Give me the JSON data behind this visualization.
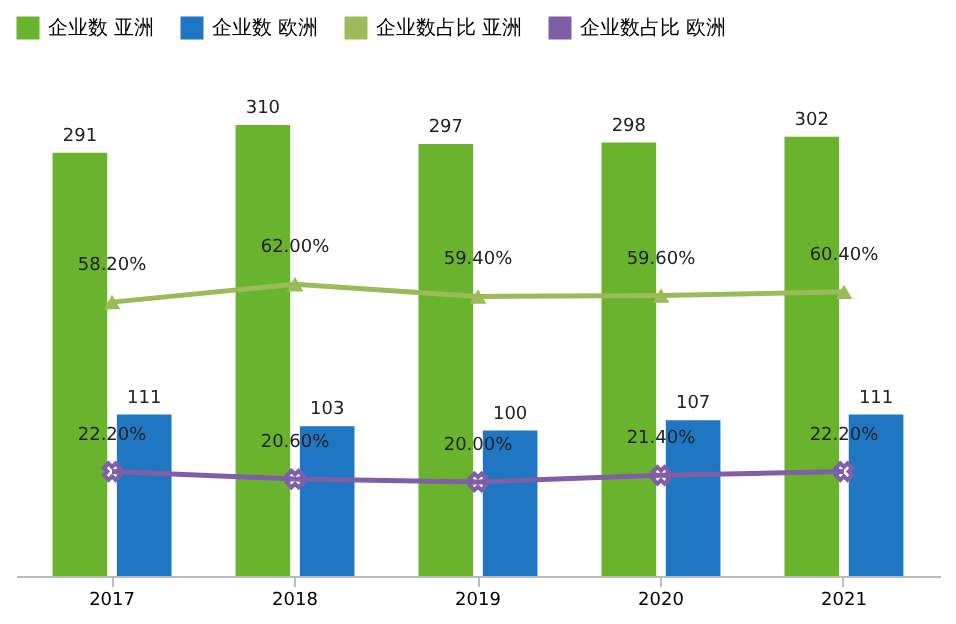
{
  "chart_data": {
    "type": "bar",
    "categories": [
      "2017",
      "2018",
      "2019",
      "2020",
      "2021"
    ],
    "series": [
      {
        "name": "企业数 亚洲",
        "color": "#6ab42d",
        "values": [
          291,
          310,
          297,
          298,
          302
        ],
        "value_labels": [
          "291",
          "310",
          "297",
          "298",
          "302"
        ]
      },
      {
        "name": "企业数 欧洲",
        "color": "#1f77c4",
        "values": [
          111,
          103,
          100,
          107,
          111
        ],
        "value_labels": [
          "111",
          "103",
          "100",
          "107",
          "111"
        ]
      },
      {
        "name": "企业数占比 亚洲",
        "type": "line",
        "axis": "y2",
        "marker": "triangle",
        "color": "#9bbb59",
        "values": [
          58.2,
          62.0,
          59.4,
          59.6,
          60.4
        ],
        "value_labels": [
          "58.20%",
          "62.00%",
          "59.40%",
          "59.60%",
          "60.40%"
        ]
      },
      {
        "name": "企业数占比 欧洲",
        "type": "line",
        "axis": "y2",
        "marker": "cross",
        "color": "#7f5fa8",
        "values": [
          22.2,
          20.6,
          20.0,
          21.4,
          22.2
        ],
        "value_labels": [
          "22.20%",
          "20.60%",
          "20.00%",
          "21.40%",
          "22.20%"
        ]
      }
    ],
    "legend": "top",
    "grid": false,
    "tick_labels": "x"
  }
}
